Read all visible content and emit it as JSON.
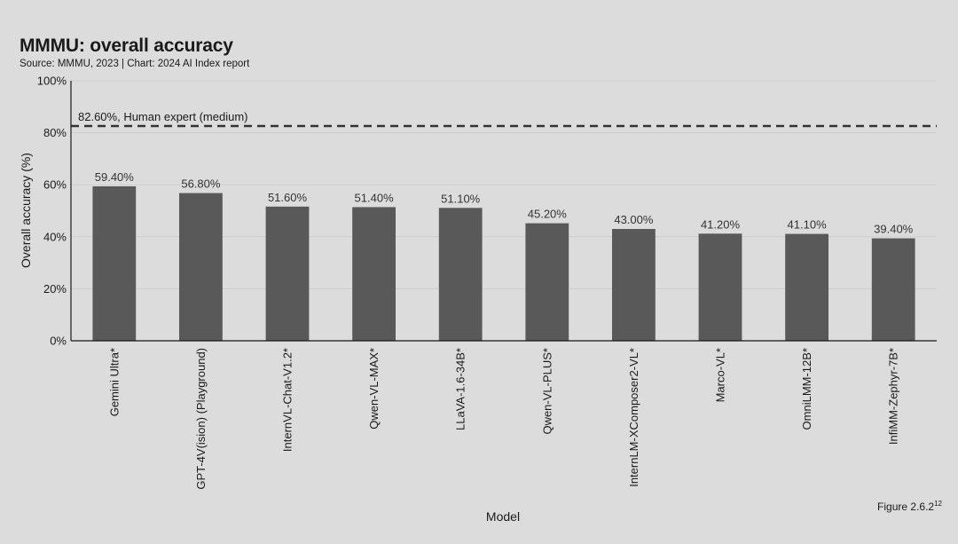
{
  "header": {
    "title": "MMMU: overall accuracy",
    "subtitle": "Source: MMMU, 2023 | Chart: 2024 AI Index report"
  },
  "footnote": "Figure 2.6.2",
  "footnote_sup": "12",
  "colors": {
    "bar": "#595959",
    "background": "#dcdcdc",
    "gridline": "#cfcfcf",
    "reference_line": "#333333"
  },
  "chart_data": {
    "type": "bar",
    "title": "MMMU: overall accuracy",
    "xlabel": "Model",
    "ylabel": "Overall accuracy (%)",
    "ylim": [
      0,
      100
    ],
    "yticks": [
      0,
      20,
      40,
      60,
      80,
      100
    ],
    "ytick_labels": [
      "0%",
      "20%",
      "40%",
      "60%",
      "80%",
      "100%"
    ],
    "grid": true,
    "categories": [
      "Gemini Ultra*",
      "GPT-4V(ision) (Playground)",
      "InternVL-Chat-V1.2*",
      "Qwen-VL-MAX*",
      "LLaVA-1.6-34B*",
      "Qwen-VL-PLUS*",
      "InternLM-XComposer2-VL*",
      "Marco-VL*",
      "OmniLMM-12B*",
      "InfiMM-Zephyr-7B*"
    ],
    "values": [
      59.4,
      56.8,
      51.6,
      51.4,
      51.1,
      45.2,
      43.0,
      41.2,
      41.1,
      39.4
    ],
    "data_labels": [
      "59.40%",
      "56.80%",
      "51.60%",
      "51.40%",
      "51.10%",
      "45.20%",
      "43.00%",
      "41.20%",
      "41.10%",
      "39.40%"
    ],
    "reference_line": {
      "value": 82.6,
      "label": "82.60%, Human expert (medium)",
      "style": "dashed"
    }
  }
}
